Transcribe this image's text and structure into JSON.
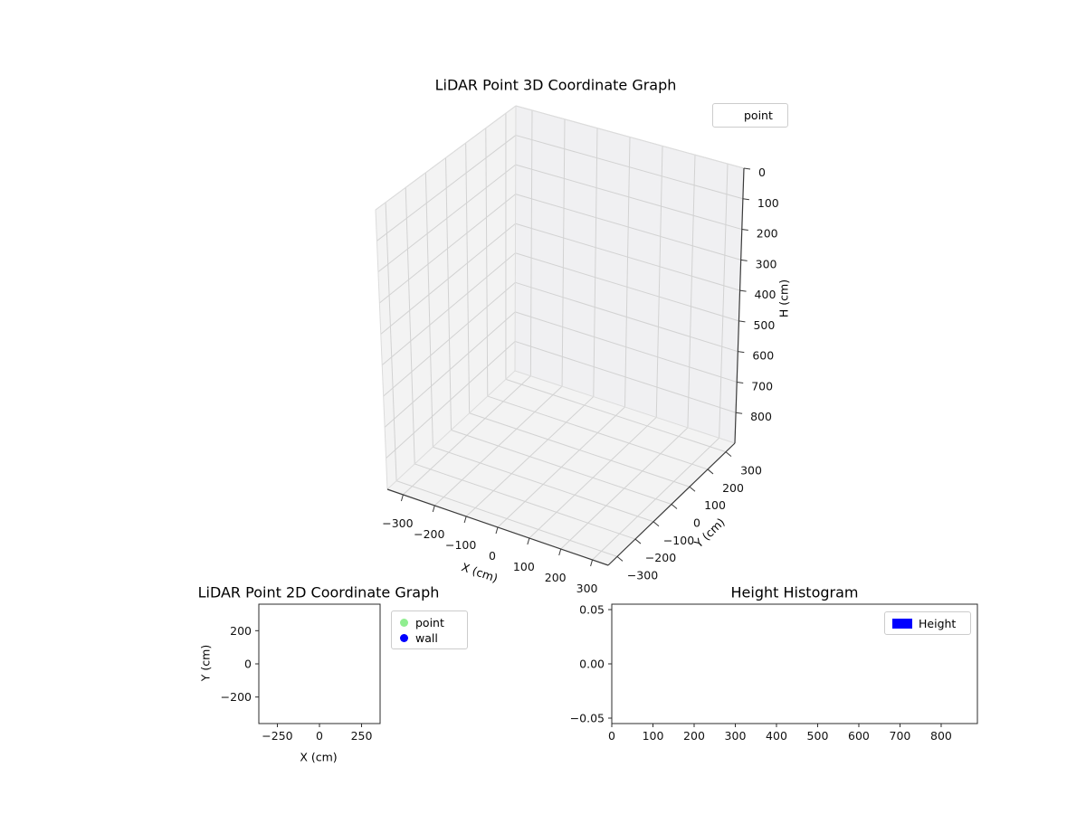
{
  "figure": {
    "background": "#ffffff"
  },
  "chart_data": [
    {
      "type": "scatter3d",
      "title": "LiDAR Point 3D Coordinate Graph",
      "xlabel": "X (cm)",
      "ylabel": "Y (cm)",
      "zlabel": "H (cm)",
      "xlim": [
        -350,
        350
      ],
      "ylim": [
        -350,
        350
      ],
      "zlim": [
        0,
        900
      ],
      "zaxis_inverted": true,
      "view": {
        "elev": 30,
        "azim": -60
      },
      "grid": true,
      "xticks": [
        -300,
        -200,
        -100,
        0,
        100,
        200,
        300
      ],
      "xticklabels": [
        "−300",
        "−200",
        "−100",
        "0",
        "100",
        "200",
        "300"
      ],
      "yticks": [
        -300,
        -200,
        -100,
        0,
        100,
        200,
        300
      ],
      "yticklabels": [
        "−300",
        "−200",
        "−100",
        "0",
        "100",
        "200",
        "300"
      ],
      "zticks": [
        0,
        100,
        200,
        300,
        400,
        500,
        600,
        700,
        800
      ],
      "zticklabels": [
        "0",
        "100",
        "200",
        "300",
        "400",
        "500",
        "600",
        "700",
        "800"
      ],
      "legend": {
        "position": "upper right",
        "entries": [
          {
            "label": "point"
          }
        ]
      },
      "series": [
        {
          "name": "point",
          "points": []
        }
      ]
    },
    {
      "type": "scatter",
      "title": "LiDAR Point 2D Coordinate Graph",
      "xlabel": "X (cm)",
      "ylabel": "Y (cm)",
      "xlim": [
        -360,
        360
      ],
      "ylim": [
        -360,
        360
      ],
      "grid": false,
      "xticks": [
        -250,
        0,
        250
      ],
      "xticklabels": [
        "−250",
        "0",
        "250"
      ],
      "yticks": [
        200,
        0,
        -200
      ],
      "yticklabels": [
        "200",
        "0",
        "−200"
      ],
      "legend": {
        "position": "outside right",
        "entries": [
          {
            "label": "point",
            "color": "#90ee90",
            "marker": "circle"
          },
          {
            "label": "wall",
            "color": "#0000ff",
            "marker": "circle"
          }
        ]
      },
      "series": [
        {
          "name": "point",
          "points": []
        },
        {
          "name": "wall",
          "points": []
        }
      ]
    },
    {
      "type": "bar",
      "title": "Height Histogram",
      "xlabel": "",
      "ylabel": "",
      "xlim": [
        0,
        888
      ],
      "ylim": [
        -0.055,
        0.055
      ],
      "grid": false,
      "xticks": [
        0,
        100,
        200,
        300,
        400,
        500,
        600,
        700,
        800
      ],
      "xticklabels": [
        "0",
        "100",
        "200",
        "300",
        "400",
        "500",
        "600",
        "700",
        "800"
      ],
      "yticks": [
        0.05,
        0.0,
        -0.05
      ],
      "yticklabels": [
        "0.05",
        "0.00",
        "−0.05"
      ],
      "legend": {
        "position": "upper right",
        "entries": [
          {
            "label": "Height",
            "color": "#0000ff",
            "marker": "patch"
          }
        ]
      },
      "values": []
    }
  ]
}
